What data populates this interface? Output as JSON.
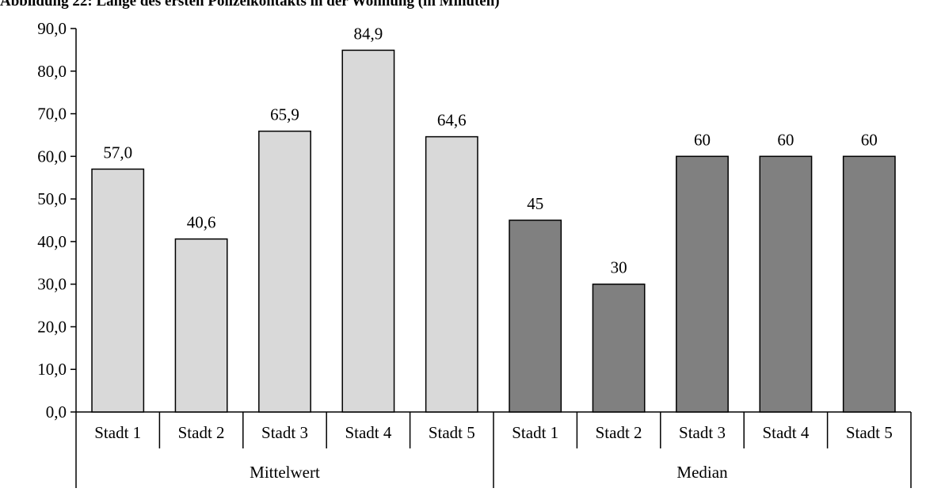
{
  "title": "Abbildung 22: Länge des ersten Polizeikontakts in der Wohnung (in Minuten)",
  "colors": {
    "mittelwert": "#d9d9d9",
    "median": "#808080",
    "axis": "#000000"
  },
  "chart_data": {
    "type": "bar",
    "title": "Abbildung 22: Länge des ersten Polizeikontakts in der Wohnung (in Minuten)",
    "xlabel": "",
    "ylabel": "",
    "ylim": [
      0,
      90
    ],
    "yticks": [
      "0,0",
      "10,0",
      "20,0",
      "30,0",
      "40,0",
      "50,0",
      "60,0",
      "70,0",
      "80,0",
      "90,0"
    ],
    "grid": false,
    "legend": "none",
    "groups": [
      {
        "name": "Mittelwert",
        "color": "#d9d9d9",
        "categories": [
          "Stadt 1",
          "Stadt 2",
          "Stadt 3",
          "Stadt 4",
          "Stadt 5"
        ],
        "values": [
          57.0,
          40.6,
          65.9,
          84.9,
          64.6
        ],
        "labels": [
          "57,0",
          "40,6",
          "65,9",
          "84,9",
          "64,6"
        ]
      },
      {
        "name": "Median",
        "color": "#808080",
        "categories": [
          "Stadt 1",
          "Stadt 2",
          "Stadt 3",
          "Stadt 4",
          "Stadt 5"
        ],
        "values": [
          45,
          30,
          60,
          60,
          60
        ],
        "labels": [
          "45",
          "30",
          "60",
          "60",
          "60"
        ]
      }
    ]
  }
}
